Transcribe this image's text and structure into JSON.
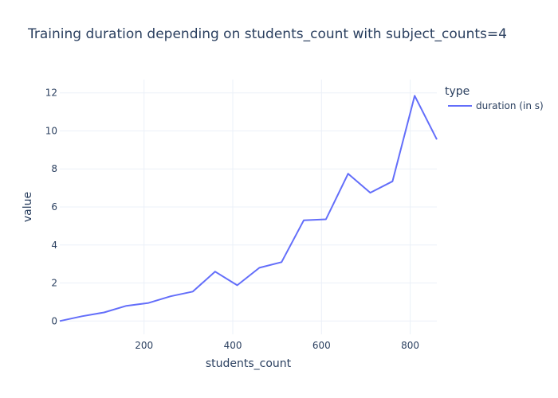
{
  "chart_data": {
    "type": "line",
    "title": "Training duration depending on students_count with subject_counts=4",
    "xlabel": "students_count",
    "ylabel": "value",
    "xlim": [
      10,
      860
    ],
    "ylim": [
      -0.7,
      12.7
    ],
    "xticks": [
      200,
      400,
      600,
      800
    ],
    "yticks": [
      0,
      2,
      4,
      6,
      8,
      10,
      12
    ],
    "grid": true,
    "legend": {
      "title": "type",
      "placement": "top-right"
    },
    "colors": {
      "series": "#636efa",
      "grid": "#ebf0f8",
      "text": "#2a3f5f"
    },
    "series": [
      {
        "name": "duration (in s)",
        "x": [
          10,
          60,
          110,
          160,
          210,
          260,
          310,
          360,
          410,
          460,
          510,
          560,
          610,
          660,
          710,
          760,
          810,
          860
        ],
        "values": [
          0.0,
          0.25,
          0.45,
          0.8,
          0.95,
          1.3,
          1.55,
          2.6,
          1.88,
          2.8,
          3.1,
          5.3,
          5.35,
          7.75,
          6.75,
          7.35,
          11.85,
          9.55
        ]
      }
    ]
  }
}
